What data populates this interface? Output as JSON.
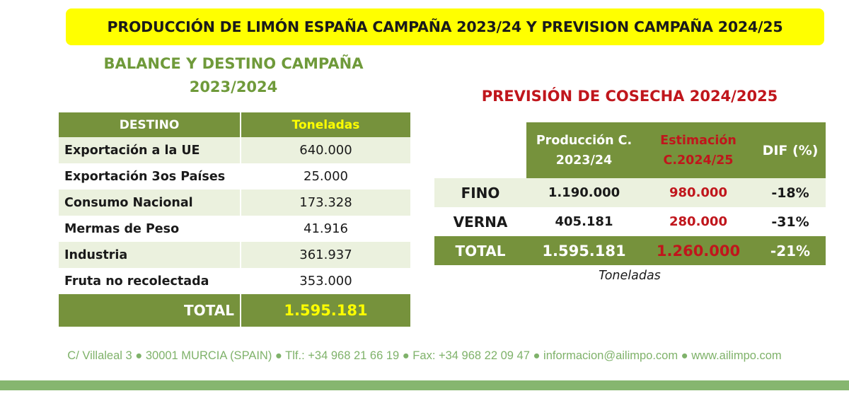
{
  "banner": {
    "title": "PRODUCCIÓN DE LIMÓN ESPAÑA CAMPAÑA 2023/24 Y PREVISION CAMPAÑA 2024/25"
  },
  "balance": {
    "title_line1": "BALANCE Y DESTINO CAMPAÑA",
    "title_line2": "2023/2024",
    "headers": {
      "destino": "DESTINO",
      "toneladas": "Toneladas"
    },
    "rows": [
      {
        "destino": "Exportación a la UE",
        "toneladas": "640.000"
      },
      {
        "destino": "Exportación 3os Países",
        "toneladas": "25.000"
      },
      {
        "destino": "Consumo Nacional",
        "toneladas": "173.328"
      },
      {
        "destino": "Mermas de Peso",
        "toneladas": "41.916"
      },
      {
        "destino": "Industria",
        "toneladas": "361.937"
      },
      {
        "destino": "Fruta no recolectada",
        "toneladas": "353.000"
      }
    ],
    "total": {
      "label": "TOTAL",
      "value": "1.595.181"
    }
  },
  "prevision": {
    "title": "PREVISIÓN DE COSECHA 2024/2025",
    "headers": {
      "produccion_line1": "Producción C.",
      "produccion_line2": "2023/24",
      "estimacion_line1": "Estimación",
      "estimacion_line2": "C.2024/25",
      "dif": "DIF (%)"
    },
    "rows": [
      {
        "variedad": "FINO",
        "produccion": "1.190.000",
        "estimacion": "980.000",
        "dif": "-18%"
      },
      {
        "variedad": "VERNA",
        "produccion": "405.181",
        "estimacion": "280.000",
        "dif": "-31%"
      }
    ],
    "total": {
      "label": "TOTAL",
      "produccion": "1.595.181",
      "estimacion": "1.260.000",
      "dif": "-21%"
    },
    "unit_note": "Toneladas"
  },
  "footer": {
    "text": "C/ Villaleal 3 ● 30001 MURCIA (SPAIN) ● Tlf.: +34 968 21 66 19 ● Fax: +34 968 22 09 47 ● informacion@ailimpo.com ● www.ailimpo.com"
  },
  "colors": {
    "green": "#76923c",
    "light_green": "#ebf1de",
    "yellow": "#ffff00",
    "red": "#c0161c",
    "footer_green": "#86b66f"
  }
}
